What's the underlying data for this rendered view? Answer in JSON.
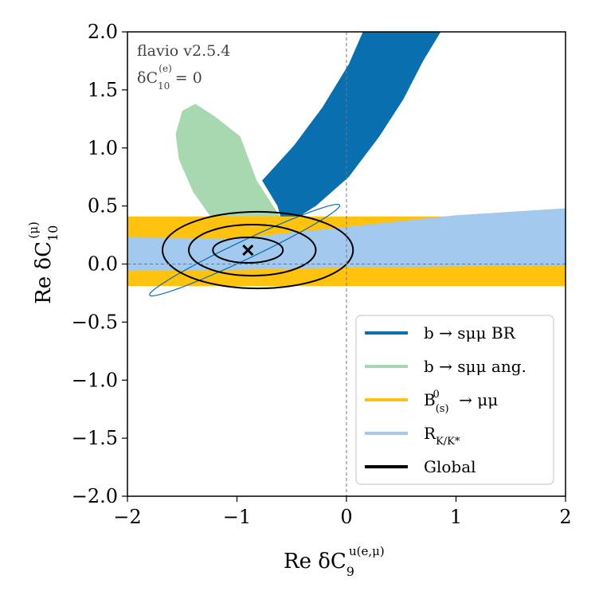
{
  "chart_data": {
    "type": "contour",
    "annotations": {
      "version": "flavio v2.5.4",
      "condition": "δC(e)10 = 0"
    },
    "xlabel": "Re δC_9^{u(e,μ)}",
    "ylabel": "Re δC_10^{(μ)}",
    "xlim": [
      -2,
      2
    ],
    "ylim": [
      -2,
      2
    ],
    "x_ticks": [
      -2,
      -1,
      0,
      1,
      2
    ],
    "y_ticks": [
      -2.0,
      -1.5,
      -1.0,
      -0.5,
      0.0,
      0.5,
      1.0,
      1.5,
      2.0
    ],
    "x_tick_labels": [
      "−2",
      "−1",
      "0",
      "1",
      "2"
    ],
    "y_tick_labels": [
      "−2.0",
      "−1.5",
      "−1.0",
      "−0.5",
      "0.0",
      "0.5",
      "1.0",
      "1.5",
      "2.0"
    ],
    "reference_lines": {
      "x": 0,
      "y": 0
    },
    "best_fit": {
      "x": -0.9,
      "y": 0.12
    },
    "series": [
      {
        "name": "b → sμμ BR",
        "color": "#0a6fae",
        "region": [
          [
            -0.77,
            0.72
          ],
          [
            -0.48,
            1.02
          ],
          [
            -0.22,
            1.35
          ],
          [
            0.02,
            1.72
          ],
          [
            0.15,
            2.0
          ],
          [
            0.86,
            2.0
          ],
          [
            0.7,
            1.75
          ],
          [
            0.52,
            1.42
          ],
          [
            0.3,
            1.1
          ],
          [
            0.02,
            0.75
          ],
          [
            -0.28,
            0.5
          ],
          [
            -0.45,
            0.4
          ],
          [
            -0.6,
            0.4
          ],
          [
            -0.63,
            0.5
          ]
        ]
      },
      {
        "name": "b → sμμ ang.",
        "color": "#a8d8b0",
        "region": [
          [
            -1.25,
            0.42
          ],
          [
            -1.4,
            0.62
          ],
          [
            -1.53,
            0.9
          ],
          [
            -1.56,
            1.12
          ],
          [
            -1.5,
            1.32
          ],
          [
            -1.38,
            1.38
          ],
          [
            -1.2,
            1.27
          ],
          [
            -0.97,
            1.1
          ],
          [
            -0.82,
            0.72
          ],
          [
            -0.67,
            0.5
          ],
          [
            -0.6,
            0.4
          ],
          [
            -0.8,
            0.33
          ],
          [
            -1.0,
            0.33
          ]
        ]
      },
      {
        "name": "B0(s) → μμ",
        "color": "#ffc20e",
        "band": {
          "y_low": -0.19,
          "y_high": 0.41
        }
      },
      {
        "name": "RK/K*",
        "color": "#a3c9ee",
        "region": [
          [
            -2,
            -0.06
          ],
          [
            -1.0,
            -0.05
          ],
          [
            0,
            -0.03
          ],
          [
            1,
            -0.02
          ],
          [
            2,
            -0.01
          ],
          [
            2,
            0.48
          ],
          [
            1,
            0.42
          ],
          [
            0,
            0.32
          ],
          [
            -1.0,
            0.22
          ],
          [
            -2,
            0.23
          ]
        ]
      },
      {
        "name": "Global",
        "color": "#000000",
        "contours": [
          {
            "cx": -0.9,
            "cy": 0.12,
            "rx": 0.32,
            "ry": 0.11
          },
          {
            "cx": -0.86,
            "cy": 0.12,
            "rx": 0.58,
            "ry": 0.22
          },
          {
            "cx": -0.81,
            "cy": 0.12,
            "rx": 0.87,
            "ry": 0.33
          }
        ]
      }
    ],
    "legend": {
      "position": "bottom-right",
      "entries": [
        "b → sμμ BR",
        "b → sμμ ang.",
        "B0(s) → μμ",
        "RK/K*",
        "Global"
      ]
    }
  }
}
